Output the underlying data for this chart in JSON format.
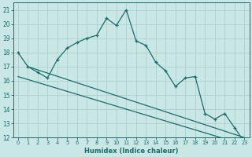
{
  "xlabel": "Humidex (Indice chaleur)",
  "xlim": [
    -0.5,
    23.5
  ],
  "ylim": [
    12,
    21.5
  ],
  "background_color": "#c9e8e5",
  "grid_color": "#aed0cc",
  "line_color": "#1a6b6b",
  "line1_x": [
    0,
    1,
    2,
    3,
    4,
    5,
    6,
    7,
    8,
    9,
    10,
    11,
    12,
    13,
    14,
    15,
    16,
    17,
    18,
    19,
    20,
    21,
    22,
    23
  ],
  "line1_y": [
    18.0,
    17.0,
    16.6,
    16.2,
    17.5,
    18.3,
    18.7,
    19.0,
    19.2,
    20.4,
    19.9,
    21.0,
    18.8,
    18.5,
    17.3,
    16.7,
    15.6,
    16.2,
    16.3,
    13.7,
    13.3,
    13.7,
    12.7,
    11.7
  ],
  "line2_y_start": 17.0,
  "line2_y_end": 12.0,
  "line3_y_start": 16.3,
  "line3_y_end": 11.5,
  "line2_x_start": 1,
  "line2_x_end": 23,
  "line3_x_start": 0,
  "line3_x_end": 23,
  "yticks": [
    12,
    13,
    14,
    15,
    16,
    17,
    18,
    19,
    20,
    21
  ],
  "xticks": [
    0,
    1,
    2,
    3,
    4,
    5,
    6,
    7,
    8,
    9,
    10,
    11,
    12,
    13,
    14,
    15,
    16,
    17,
    18,
    19,
    20,
    21,
    22,
    23
  ]
}
